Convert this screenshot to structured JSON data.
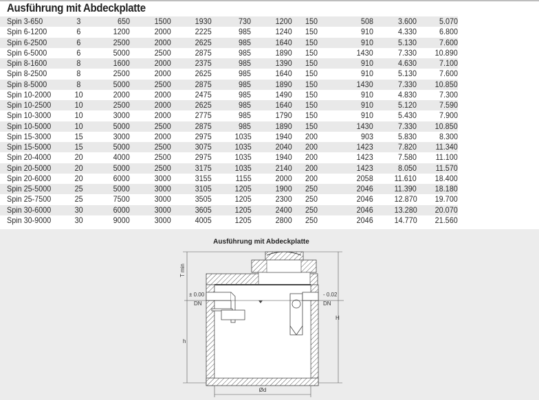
{
  "title": "Ausführung mit Abdeckplatte",
  "rows": [
    [
      "Spin 3-650",
      "3",
      "650",
      "1500",
      "1930",
      "730",
      "1200",
      "150",
      "508",
      "3.600",
      "5.070"
    ],
    [
      "Spin 6-1200",
      "6",
      "1200",
      "2000",
      "2225",
      "985",
      "1240",
      "150",
      "910",
      "4.330",
      "6.800"
    ],
    [
      "Spin 6-2500",
      "6",
      "2500",
      "2000",
      "2625",
      "985",
      "1640",
      "150",
      "910",
      "5.130",
      "7.600"
    ],
    [
      "Spin 6-5000",
      "6",
      "5000",
      "2500",
      "2875",
      "985",
      "1890",
      "150",
      "1430",
      "7.330",
      "10.890"
    ],
    [
      "Spin 8-1600",
      "8",
      "1600",
      "2000",
      "2375",
      "985",
      "1390",
      "150",
      "910",
      "4.630",
      "7.100"
    ],
    [
      "Spin 8-2500",
      "8",
      "2500",
      "2000",
      "2625",
      "985",
      "1640",
      "150",
      "910",
      "5.130",
      "7.600"
    ],
    [
      "Spin 8-5000",
      "8",
      "5000",
      "2500",
      "2875",
      "985",
      "1890",
      "150",
      "1430",
      "7.330",
      "10.850"
    ],
    [
      "Spin 10-2000",
      "10",
      "2000",
      "2000",
      "2475",
      "985",
      "1490",
      "150",
      "910",
      "4.830",
      "7.300"
    ],
    [
      "Spin 10-2500",
      "10",
      "2500",
      "2000",
      "2625",
      "985",
      "1640",
      "150",
      "910",
      "5.120",
      "7.590"
    ],
    [
      "Spin 10-3000",
      "10",
      "3000",
      "2000",
      "2775",
      "985",
      "1790",
      "150",
      "910",
      "5.430",
      "7.900"
    ],
    [
      "Spin 10-5000",
      "10",
      "5000",
      "2500",
      "2875",
      "985",
      "1890",
      "150",
      "1430",
      "7.330",
      "10.850"
    ],
    [
      "Spin 15-3000",
      "15",
      "3000",
      "2000",
      "2975",
      "1035",
      "1940",
      "200",
      "903",
      "5.830",
      "8.300"
    ],
    [
      "Spin 15-5000",
      "15",
      "5000",
      "2500",
      "3075",
      "1035",
      "2040",
      "200",
      "1423",
      "7.820",
      "11.340"
    ],
    [
      "Spin 20-4000",
      "20",
      "4000",
      "2500",
      "2975",
      "1035",
      "1940",
      "200",
      "1423",
      "7.580",
      "11.100"
    ],
    [
      "Spin 20-5000",
      "20",
      "5000",
      "2500",
      "3175",
      "1035",
      "2140",
      "200",
      "1423",
      "8.050",
      "11.570"
    ],
    [
      "Spin 20-6000",
      "20",
      "6000",
      "3000",
      "3155",
      "1155",
      "2000",
      "200",
      "2058",
      "11.610",
      "18.400"
    ],
    [
      "Spin 25-5000",
      "25",
      "5000",
      "3000",
      "3105",
      "1205",
      "1900",
      "250",
      "2046",
      "11.390",
      "18.180"
    ],
    [
      "Spin 25-7500",
      "25",
      "7500",
      "3000",
      "3505",
      "1205",
      "2300",
      "250",
      "2046",
      "12.870",
      "19.700"
    ],
    [
      "Spin 30-6000",
      "30",
      "6000",
      "3000",
      "3605",
      "1205",
      "2400",
      "250",
      "2046",
      "13.280",
      "20.070"
    ],
    [
      "Spin 30-9000",
      "30",
      "9000",
      "3000",
      "4005",
      "1205",
      "2800",
      "250",
      "2046",
      "14.770",
      "21.560"
    ]
  ],
  "drawing": {
    "title": "Ausführung mit Abdeckplatte",
    "inlet_level": "± 0.00",
    "outlet_level": "- 0.02",
    "inlet_dn": "DN",
    "outlet_dn": "DN",
    "diameter": "Ød",
    "t_min": "T min",
    "h_total": "H",
    "h_inlet": "h"
  }
}
